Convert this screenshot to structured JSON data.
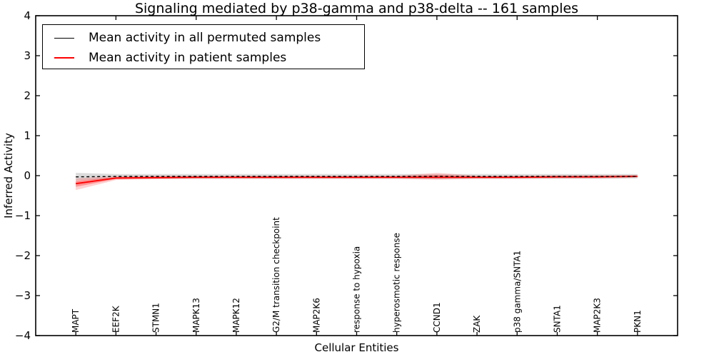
{
  "chart_data": {
    "type": "line",
    "title": "Signaling mediated by p38-gamma and p38-delta -- 161 samples",
    "xlabel": "Cellular Entities",
    "ylabel": "Inferred Activity",
    "ylim": [
      -4,
      4
    ],
    "xlim": [
      0,
      16
    ],
    "yticks": [
      4,
      3,
      2,
      1,
      0,
      -1,
      -2,
      -3,
      -4
    ],
    "ytick_labels": [
      "4",
      "3",
      "2",
      "1",
      "0",
      "−1",
      "−2",
      "−3",
      "−4"
    ],
    "top_xticks": [
      2,
      4,
      6,
      8,
      10,
      12,
      14
    ],
    "grid": false,
    "legend_position": "upper left",
    "categories": [
      "MAPT",
      "EEF2K",
      "STMN1",
      "MAPK13",
      "MAPK12",
      "G2/M transition checkpoint",
      "MAP2K6",
      "response to hypoxia",
      "hyperosmotic response",
      "CCND1",
      "ZAK",
      "p38 gamma/SNTA1",
      "SNTA1",
      "MAP2K3",
      "PKN1"
    ],
    "series": [
      {
        "name": "Mean activity in all permuted samples",
        "color": "#000000",
        "style": "dashed",
        "values": [
          -0.03,
          -0.02,
          -0.02,
          -0.02,
          -0.02,
          -0.02,
          -0.02,
          -0.02,
          -0.02,
          -0.02,
          -0.02,
          -0.02,
          -0.02,
          -0.02,
          -0.02
        ],
        "band_upper": [
          0.07,
          0.04,
          0.04,
          0.04,
          0.04,
          0.04,
          0.04,
          0.04,
          0.04,
          0.04,
          0.04,
          0.04,
          0.04,
          0.04,
          0.04
        ],
        "band_lower": [
          -0.12,
          -0.08,
          -0.08,
          -0.08,
          -0.08,
          -0.08,
          -0.08,
          -0.08,
          -0.08,
          -0.09,
          -0.08,
          -0.08,
          -0.08,
          -0.08,
          -0.07
        ],
        "band_color": "rgba(0,0,0,0.14)"
      },
      {
        "name": "Mean activity in patient samples",
        "color": "#ff0000",
        "style": "solid",
        "values": [
          -0.2,
          -0.06,
          -0.05,
          -0.04,
          -0.04,
          -0.04,
          -0.04,
          -0.04,
          -0.04,
          -0.04,
          -0.04,
          -0.04,
          -0.03,
          -0.03,
          -0.02
        ],
        "band_upper": [
          -0.07,
          -0.01,
          0.0,
          0.0,
          0.0,
          0.0,
          0.0,
          0.0,
          0.0,
          0.07,
          0.0,
          0.0,
          0.01,
          0.01,
          0.02
        ],
        "band_lower": [
          -0.36,
          -0.11,
          -0.09,
          -0.08,
          -0.08,
          -0.08,
          -0.08,
          -0.08,
          -0.08,
          -0.1,
          -0.08,
          -0.08,
          -0.07,
          -0.07,
          -0.05
        ],
        "band_color": "rgba(255,0,0,0.18)",
        "band_inner_color": "rgba(255,0,0,0.30)"
      }
    ]
  },
  "colors": {
    "frame": "#000000",
    "background": "#ffffff",
    "permuted_line": "#000000",
    "patient_line": "#ff0000"
  }
}
